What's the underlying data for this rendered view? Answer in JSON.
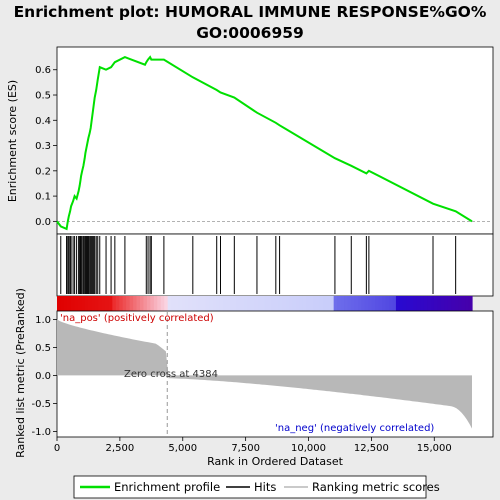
{
  "chart_data": {
    "type": "line",
    "title_line1": "Enrichment plot: HUMORAL IMMUNE RESPONSE%GO%",
    "title_line2": "GO:0006959",
    "xlabel": "Rank in Ordered Dataset",
    "ylabel_top": "Enrichment score (ES)",
    "ylabel_bottom": "Ranked list metric (PreRanked)",
    "xlim": [
      0,
      16500
    ],
    "es_ylim": [
      -0.05,
      0.69
    ],
    "metric_ylim": [
      -1.1,
      1.15
    ],
    "x_ticks": [
      0,
      2500,
      5000,
      7500,
      10000,
      12500,
      15000
    ],
    "x_tick_labels": [
      "0",
      "2,500",
      "5,000",
      "7,500",
      "10,000",
      "12,500",
      "15,000"
    ],
    "es_ticks": [
      0.0,
      0.1,
      0.2,
      0.3,
      0.4,
      0.5,
      0.6
    ],
    "es_tick_labels": [
      "0.0",
      "0.1",
      "0.2",
      "0.3",
      "0.4",
      "0.5",
      "0.6"
    ],
    "metric_ticks": [
      1.0,
      0.5,
      0.0,
      -0.5,
      -1.0
    ],
    "metric_tick_labels": [
      "1.0",
      "0.5",
      "0.0",
      "-0.5",
      "-1.0"
    ],
    "zero_cross_rank": 4384,
    "zero_cross_label": "Zero cross at 4384",
    "pos_label": "'na_pos' (positively correlated)",
    "neg_label": "'na_neg' (negatively correlated)",
    "hits": [
      150,
      380,
      430,
      470,
      520,
      560,
      640,
      700,
      780,
      860,
      900,
      930,
      960,
      1000,
      1050,
      1100,
      1130,
      1170,
      1210,
      1250,
      1300,
      1340,
      1380,
      1420,
      1460,
      1500,
      1560,
      1620,
      1700,
      1950,
      2150,
      2300,
      2700,
      3550,
      3620,
      3700,
      3750,
      4250,
      5400,
      6350,
      6500,
      7050,
      7950,
      8700,
      8850,
      11050,
      11700,
      12300,
      12400,
      14950,
      15850
    ],
    "es_curve": [
      [
        0,
        0.0
      ],
      [
        150,
        -0.02
      ],
      [
        380,
        -0.03
      ],
      [
        430,
        0.0
      ],
      [
        470,
        0.02
      ],
      [
        520,
        0.04
      ],
      [
        560,
        0.06
      ],
      [
        640,
        0.08
      ],
      [
        700,
        0.1
      ],
      [
        780,
        0.09
      ],
      [
        860,
        0.12
      ],
      [
        900,
        0.14
      ],
      [
        930,
        0.16
      ],
      [
        960,
        0.18
      ],
      [
        1000,
        0.2
      ],
      [
        1050,
        0.22
      ],
      [
        1100,
        0.25
      ],
      [
        1130,
        0.27
      ],
      [
        1170,
        0.29
      ],
      [
        1210,
        0.31
      ],
      [
        1250,
        0.33
      ],
      [
        1300,
        0.35
      ],
      [
        1340,
        0.37
      ],
      [
        1380,
        0.4
      ],
      [
        1420,
        0.43
      ],
      [
        1460,
        0.46
      ],
      [
        1500,
        0.49
      ],
      [
        1560,
        0.52
      ],
      [
        1620,
        0.56
      ],
      [
        1700,
        0.61
      ],
      [
        1950,
        0.6
      ],
      [
        2150,
        0.61
      ],
      [
        2300,
        0.63
      ],
      [
        2700,
        0.65
      ],
      [
        3500,
        0.62
      ],
      [
        3550,
        0.63
      ],
      [
        3620,
        0.64
      ],
      [
        3700,
        0.65
      ],
      [
        3750,
        0.64
      ],
      [
        4250,
        0.64
      ],
      [
        5400,
        0.57
      ],
      [
        6350,
        0.52
      ],
      [
        6500,
        0.51
      ],
      [
        7050,
        0.49
      ],
      [
        7950,
        0.43
      ],
      [
        8700,
        0.39
      ],
      [
        8850,
        0.38
      ],
      [
        11050,
        0.25
      ],
      [
        11700,
        0.22
      ],
      [
        12300,
        0.19
      ],
      [
        12400,
        0.2
      ],
      [
        14950,
        0.07
      ],
      [
        15850,
        0.04
      ],
      [
        16500,
        0.0
      ]
    ],
    "legend": [
      "Enrichment profile",
      "Hits",
      "Ranking metric scores"
    ],
    "colors": {
      "es_line": "#00e000",
      "hits": "#000000",
      "metric_fill": "#b8b8b8",
      "zero_line": "#999999",
      "pos_text": "#cc0000",
      "neg_text": "#0000cc",
      "heat_red": "#e00000",
      "heat_blue": "#2a10d0"
    }
  }
}
